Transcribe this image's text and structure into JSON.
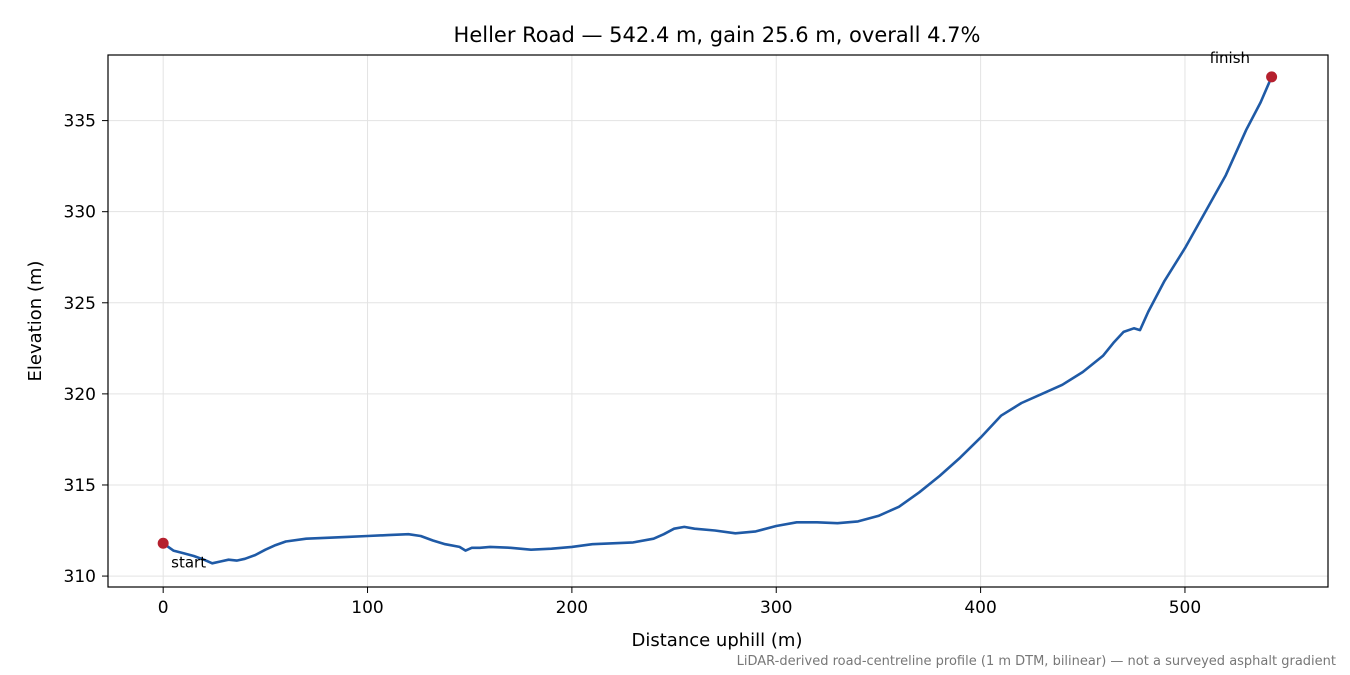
{
  "chart_data": {
    "type": "line",
    "title": "Heller Road — 542.4 m, gain 25.6 m, overall 4.7%",
    "xlabel": "Distance uphill (m)",
    "ylabel": "Elevation (m)",
    "xlim": [
      -27,
      570
    ],
    "ylim": [
      309.4,
      338.6
    ],
    "x_ticks": [
      0,
      100,
      200,
      300,
      400,
      500
    ],
    "y_ticks": [
      310,
      315,
      320,
      325,
      330,
      335
    ],
    "grid": true,
    "legend": "none",
    "line_color": "#1f5aa6",
    "marker_color": "#b5202e",
    "footnote": "LiDAR-derived road-centreline profile (1 m DTM, bilinear) — not a surveyed asphalt gradient",
    "series": [
      {
        "x": [
          0,
          5,
          10,
          15,
          20,
          24,
          28,
          32,
          36,
          40,
          45,
          50,
          55,
          60,
          70,
          80,
          90,
          100,
          110,
          120,
          126,
          132,
          138,
          145,
          148,
          151,
          155,
          160,
          170,
          180,
          190,
          200,
          210,
          220,
          230,
          240,
          245,
          250,
          255,
          260,
          270,
          280,
          290,
          300,
          310,
          320,
          330,
          340,
          350,
          360,
          370,
          380,
          390,
          400,
          410,
          420,
          430,
          440,
          450,
          460,
          465,
          470,
          475,
          478,
          482,
          490,
          500,
          510,
          520,
          530,
          537,
          542.4
        ],
        "y": [
          311.8,
          311.4,
          311.25,
          311.1,
          310.9,
          310.7,
          310.8,
          310.9,
          310.85,
          310.95,
          311.15,
          311.45,
          311.7,
          311.9,
          312.05,
          312.1,
          312.15,
          312.2,
          312.25,
          312.3,
          312.2,
          311.95,
          311.75,
          311.6,
          311.4,
          311.55,
          311.55,
          311.6,
          311.55,
          311.45,
          311.5,
          311.6,
          311.75,
          311.8,
          311.85,
          312.05,
          312.3,
          312.6,
          312.7,
          312.6,
          312.5,
          312.35,
          312.45,
          312.75,
          312.95,
          312.95,
          312.9,
          313.0,
          313.3,
          313.8,
          314.6,
          315.5,
          316.5,
          317.6,
          318.8,
          319.5,
          320.0,
          320.5,
          321.2,
          322.1,
          322.8,
          323.4,
          323.6,
          323.5,
          324.5,
          326.2,
          328.0,
          330.0,
          332.0,
          334.5,
          336.0,
          337.4
        ]
      }
    ],
    "annotations": [
      {
        "text": "start",
        "x": 0,
        "y": 311.8
      },
      {
        "text": "finish",
        "x": 542.4,
        "y": 337.4
      }
    ]
  }
}
